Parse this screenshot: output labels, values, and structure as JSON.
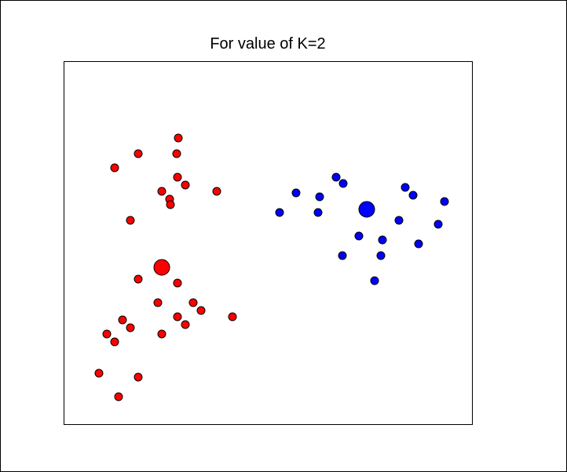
{
  "chart_data": {
    "type": "scatter",
    "title": "For value of K=2",
    "xlabel": "",
    "ylabel": "",
    "axes_visible": false,
    "grid": false,
    "colors": {
      "cluster_1": "#ff0000",
      "cluster_2": "#0000ff",
      "outline": "#000000"
    },
    "series": [
      {
        "cluster": 1,
        "color": "#ff0000",
        "points": [
          [
            226,
            175
          ],
          [
            175,
            195
          ],
          [
            224,
            195
          ],
          [
            145,
            213
          ],
          [
            225,
            225
          ],
          [
            235,
            235
          ],
          [
            205,
            243
          ],
          [
            275,
            243
          ],
          [
            215,
            253
          ],
          [
            216,
            260
          ],
          [
            165,
            280
          ],
          [
            175,
            355
          ],
          [
            225,
            360
          ],
          [
            200,
            385
          ],
          [
            245,
            385
          ],
          [
            255,
            395
          ],
          [
            225,
            403
          ],
          [
            295,
            403
          ],
          [
            155,
            407
          ],
          [
            235,
            413
          ],
          [
            165,
            417
          ],
          [
            135,
            425
          ],
          [
            205,
            425
          ],
          [
            145,
            435
          ],
          [
            125,
            475
          ],
          [
            175,
            480
          ],
          [
            150,
            505
          ]
        ],
        "centroid": [
          205,
          340
        ]
      },
      {
        "cluster": 2,
        "color": "#0000ff",
        "points": [
          [
            427,
            225
          ],
          [
            436,
            233
          ],
          [
            515,
            238
          ],
          [
            376,
            245
          ],
          [
            525,
            248
          ],
          [
            406,
            250
          ],
          [
            565,
            256
          ],
          [
            355,
            270
          ],
          [
            404,
            270
          ],
          [
            507,
            280
          ],
          [
            557,
            285
          ],
          [
            456,
            300
          ],
          [
            486,
            305
          ],
          [
            532,
            310
          ],
          [
            435,
            325
          ],
          [
            484,
            325
          ],
          [
            476,
            357
          ]
        ],
        "centroid": [
          466,
          266
        ]
      }
    ]
  }
}
